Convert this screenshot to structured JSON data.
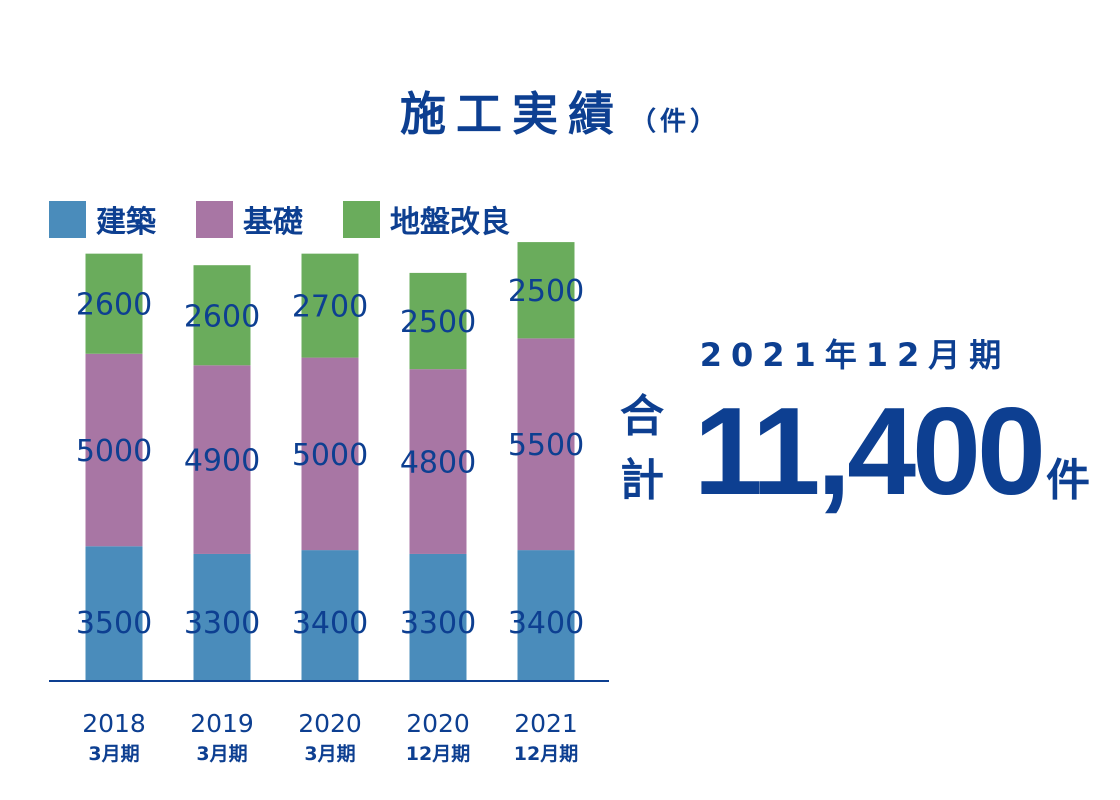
{
  "title": {
    "main": "施工実績",
    "unit": "（件）"
  },
  "legend": [
    {
      "label": "建築",
      "color": "#4a8cbb"
    },
    {
      "label": "基礎",
      "color": "#a876a4"
    },
    {
      "label": "地盤改良",
      "color": "#6aac5c"
    }
  ],
  "summary": {
    "period": "2021年12月期",
    "total_prefix": "合計",
    "total_value": "11,400",
    "total_suffix": "件"
  },
  "chart_data": {
    "type": "bar",
    "stacked": true,
    "categories": [
      {
        "year": "2018",
        "period": "3月期"
      },
      {
        "year": "2019",
        "period": "3月期"
      },
      {
        "year": "2020",
        "period": "3月期"
      },
      {
        "year": "2020",
        "period": "12月期"
      },
      {
        "year": "2021",
        "period": "12月期"
      }
    ],
    "series": [
      {
        "name": "建築",
        "color": "#4a8cbb",
        "values": [
          3500,
          3300,
          3400,
          3300,
          3400
        ]
      },
      {
        "name": "基礎",
        "color": "#a876a4",
        "values": [
          5000,
          4900,
          5000,
          4800,
          5500
        ]
      },
      {
        "name": "地盤改良",
        "color": "#6aac5c",
        "values": [
          2600,
          2600,
          2700,
          2500,
          2500
        ]
      }
    ],
    "ylim": [
      0,
      11400
    ],
    "grid": false,
    "data_labels": true,
    "legend_position": "top-left"
  }
}
